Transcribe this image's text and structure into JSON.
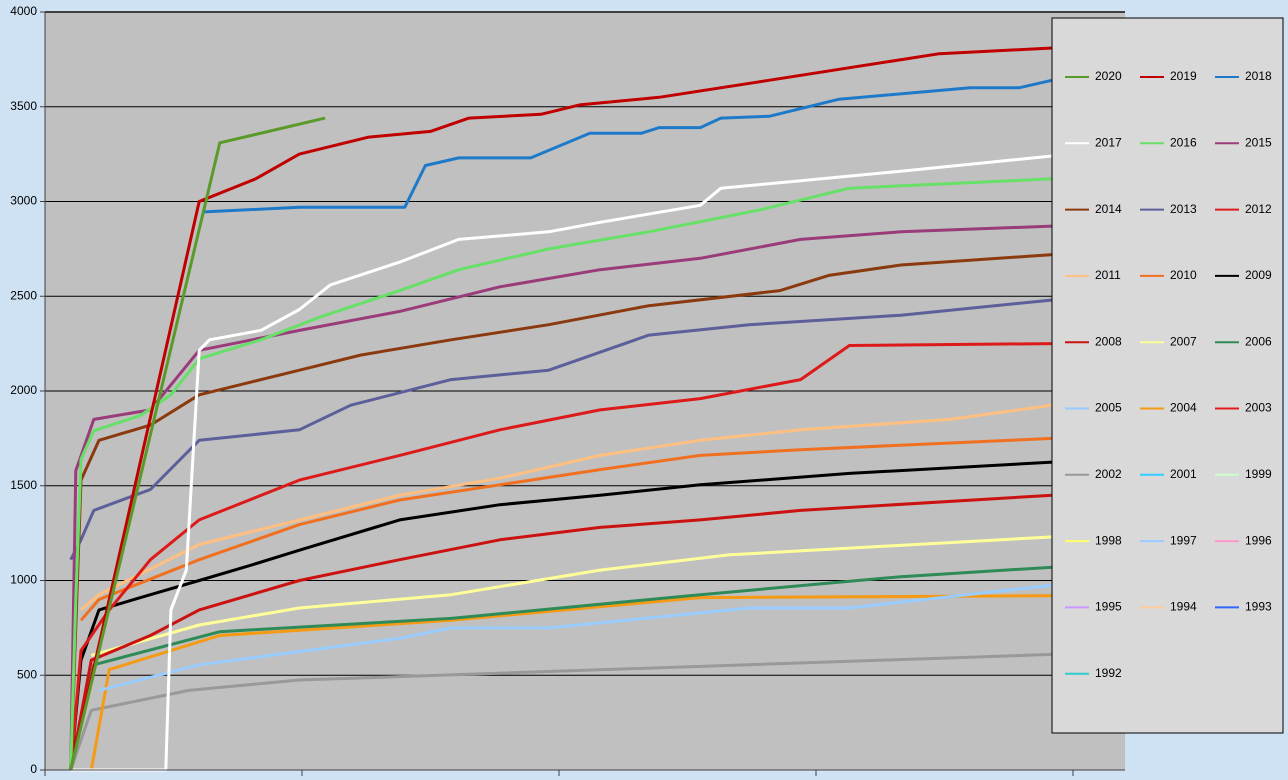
{
  "chart_data": {
    "type": "line",
    "xlim": [
      0,
      420
    ],
    "xticks": [
      0,
      100,
      200,
      300,
      400
    ],
    "ylim": [
      0,
      4000
    ],
    "yticks": [
      0,
      500,
      1000,
      1500,
      2000,
      2500,
      3000,
      3500,
      4000
    ],
    "grid": true,
    "legend": "right",
    "series": [
      {
        "name": "2020",
        "color": "#5a9a2a",
        "x": [
          10,
          68,
          109
        ],
        "values": [
          0,
          3310,
          3440
        ]
      },
      {
        "name": "2019",
        "color": "#c00000",
        "x": [
          10,
          60,
          82,
          99,
          126,
          150,
          165,
          193,
          208,
          239,
          282,
          348,
          392
        ],
        "values": [
          0,
          3000,
          3120,
          3250,
          3340,
          3370,
          3440,
          3460,
          3510,
          3550,
          3640,
          3780,
          3810
        ]
      },
      {
        "name": "2018",
        "color": "#1e7ac8",
        "x": [
          62,
          99,
          140,
          148,
          161,
          189,
          212,
          232,
          239,
          255,
          263,
          282,
          309,
          360,
          379,
          392
        ],
        "values": [
          2945,
          2970,
          2970,
          3190,
          3230,
          3230,
          3360,
          3360,
          3390,
          3390,
          3440,
          3450,
          3540,
          3600,
          3600,
          3640
        ]
      },
      {
        "name": "2017",
        "color": "#ffffff",
        "x": [
          10,
          47,
          49,
          55,
          60,
          64,
          84,
          99,
          111,
          138,
          161,
          196,
          216,
          255,
          263,
          294,
          333,
          392
        ],
        "values": [
          0,
          0,
          845,
          1055,
          2215,
          2270,
          2320,
          2430,
          2560,
          2680,
          2800,
          2840,
          2890,
          2980,
          3070,
          3110,
          3160,
          3240
        ]
      },
      {
        "name": "2016",
        "color": "#66e066",
        "x": [
          10,
          12,
          14,
          19,
          37,
          49,
          60,
          84,
          107,
          138,
          161,
          196,
          235,
          278,
          313,
          392
        ],
        "values": [
          0,
          900,
          1640,
          1790,
          1870,
          1980,
          2170,
          2270,
          2390,
          2530,
          2640,
          2750,
          2840,
          2955,
          3070,
          3120
        ]
      },
      {
        "name": "2015",
        "color": "#9a3b7a",
        "x": [
          10,
          12,
          19,
          41,
          60,
          99,
          138,
          177,
          216,
          255,
          294,
          333,
          392
        ],
        "values": [
          0,
          1580,
          1850,
          1900,
          2215,
          2320,
          2420,
          2550,
          2640,
          2700,
          2800,
          2840,
          2870
        ]
      },
      {
        "name": "2014",
        "color": "#8b3a10",
        "x": [
          10,
          14,
          21,
          41,
          60,
          99,
          123,
          158,
          196,
          235,
          286,
          305,
          333,
          392
        ],
        "values": [
          0,
          1530,
          1740,
          1820,
          1980,
          2110,
          2190,
          2270,
          2350,
          2450,
          2530,
          2610,
          2665,
          2720
        ]
      },
      {
        "name": "2013",
        "color": "#5c5f9a",
        "x": [
          10,
          14,
          19,
          41,
          60,
          99,
          119,
          158,
          196,
          235,
          274,
          333,
          392
        ],
        "values": [
          1110,
          1215,
          1370,
          1480,
          1740,
          1795,
          1925,
          2060,
          2110,
          2295,
          2350,
          2400,
          2480
        ]
      },
      {
        "name": "2012",
        "color": "#dd1a1a",
        "x": [
          10,
          14,
          25,
          41,
          60,
          99,
          138,
          177,
          216,
          255,
          294,
          313,
          392
        ],
        "values": [
          0,
          630,
          845,
          1110,
          1320,
          1530,
          1660,
          1795,
          1900,
          1960,
          2060,
          2240,
          2250
        ]
      },
      {
        "name": "2011",
        "color": "#ffbf80",
        "x": [
          14,
          21,
          60,
          99,
          138,
          177,
          216,
          255,
          294,
          352,
          392
        ],
        "values": [
          845,
          925,
          1190,
          1320,
          1450,
          1540,
          1660,
          1740,
          1795,
          1850,
          1925
        ]
      },
      {
        "name": "2010",
        "color": "#f07020",
        "x": [
          14,
          21,
          60,
          99,
          138,
          177,
          216,
          255,
          294,
          392
        ],
        "values": [
          790,
          900,
          1110,
          1295,
          1425,
          1505,
          1585,
          1660,
          1690,
          1750
        ]
      },
      {
        "name": "2009",
        "color": "#000000",
        "x": [
          10,
          14,
          21,
          41,
          60,
          80,
          99,
          138,
          177,
          216,
          255,
          313,
          392
        ],
        "values": [
          0,
          580,
          845,
          925,
          1000,
          1080,
          1160,
          1320,
          1400,
          1450,
          1505,
          1565,
          1625
        ]
      },
      {
        "name": "2008",
        "color": "#cc1111",
        "x": [
          10,
          18,
          41,
          60,
          99,
          138,
          177,
          216,
          255,
          294,
          392
        ],
        "values": [
          0,
          580,
          710,
          845,
          1000,
          1110,
          1215,
          1280,
          1320,
          1370,
          1450
        ]
      },
      {
        "name": "2007",
        "color": "#ffff99",
        "x": [
          18,
          60,
          99,
          158,
          216,
          266,
          392
        ],
        "values": [
          605,
          765,
          855,
          925,
          1055,
          1135,
          1230
        ]
      },
      {
        "name": "2006",
        "color": "#2e8b57",
        "x": [
          10,
          19,
          68,
          158,
          255,
          333,
          392
        ],
        "values": [
          0,
          555,
          730,
          800,
          925,
          1020,
          1070
        ]
      },
      {
        "name": "2005",
        "color": "#99ccff",
        "x": [
          21,
          60,
          138,
          158,
          196,
          274,
          313,
          392
        ],
        "values": [
          420,
          555,
          695,
          750,
          750,
          855,
          855,
          975
        ]
      },
      {
        "name": "2004",
        "color": "#f59a12",
        "x": [
          18,
          25,
          68,
          158,
          255,
          392
        ],
        "values": [
          0,
          530,
          710,
          790,
          910,
          920
        ]
      },
      {
        "name": "2003",
        "color": "#e31a1c",
        "x": [],
        "values": []
      },
      {
        "name": "2002",
        "color": "#999999",
        "x": [
          10,
          18,
          56,
          99,
          392
        ],
        "values": [
          0,
          315,
          420,
          475,
          610
        ]
      },
      {
        "name": "2001",
        "color": "#33ccff",
        "x": [],
        "values": []
      },
      {
        "name": "1999",
        "color": "#ccffcc",
        "x": [],
        "values": []
      },
      {
        "name": "1998",
        "color": "#ffff66",
        "x": [],
        "values": []
      },
      {
        "name": "1997",
        "color": "#99ccff",
        "x": [],
        "values": []
      },
      {
        "name": "1996",
        "color": "#ff99cc",
        "x": [],
        "values": []
      },
      {
        "name": "1995",
        "color": "#cc99ff",
        "x": [],
        "values": []
      },
      {
        "name": "1994",
        "color": "#ffcc99",
        "x": [],
        "values": []
      },
      {
        "name": "1993",
        "color": "#3366ff",
        "x": [],
        "values": []
      },
      {
        "name": "1992",
        "color": "#33cccc",
        "x": [],
        "values": []
      }
    ]
  }
}
